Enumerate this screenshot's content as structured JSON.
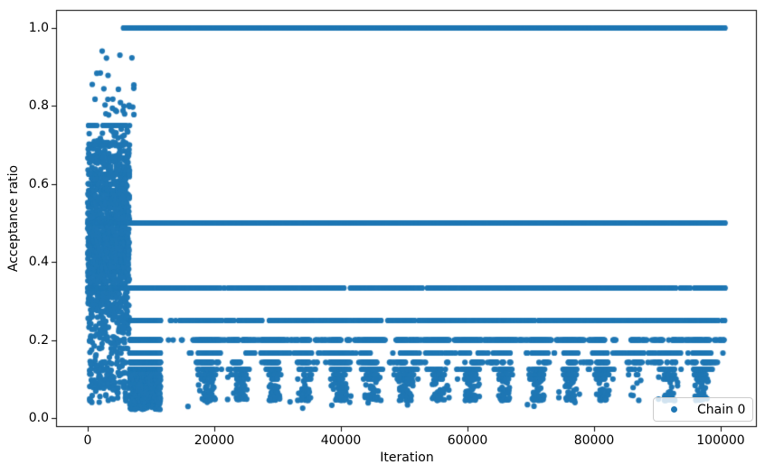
{
  "chart_data": {
    "type": "scatter",
    "title": "",
    "xlabel": "Iteration",
    "ylabel": "Acceptance ratio",
    "xlim": [
      -5000,
      105714
    ],
    "ylim": [
      -0.0231,
      1.0463
    ],
    "xticks": [
      0,
      20000,
      40000,
      60000,
      80000,
      100000
    ],
    "xtick_labels": [
      "0",
      "20000",
      "40000",
      "60000",
      "80000",
      "100000"
    ],
    "yticks": [
      0.0,
      0.2,
      0.4,
      0.6,
      0.8,
      1.0
    ],
    "ytick_labels": [
      "0.0",
      "0.2",
      "0.4",
      "0.6",
      "0.8",
      "1.0"
    ],
    "grid": false,
    "legend": {
      "label": "Chain 0",
      "location": "lower right"
    },
    "marker": {
      "shape": "circle",
      "color": "#1f77b4",
      "radius_px": 3.1
    },
    "series": [
      {
        "name": "Chain 0"
      }
    ],
    "pattern": {
      "seed": 11,
      "x_end": 100700,
      "acceptance_band_levels": [
        1.0,
        0.5,
        0.3333,
        0.25,
        0.2,
        0.1667,
        0.1429,
        0.125,
        0.1111,
        0.1
      ],
      "band_one_start": 5650,
      "band_half_start": 0,
      "band_third_start": 0,
      "burn_in": {
        "x_start": 0,
        "x_end": 6600,
        "y_min": 0.13,
        "y_top_base": 0.755,
        "y_top_rise_from": 4600,
        "y_top_rise": 0.075,
        "striation_fractions": [
          0.5,
          0.6,
          0.625,
          0.6667,
          0.7,
          0.75,
          0.4,
          0.3333,
          0.375,
          0.45,
          0.55,
          0.5833
        ],
        "high_outlier_count": 28,
        "high_outlier_ymin": 0.775,
        "high_outlier_ymax": 0.945,
        "clump_count": 90,
        "clump_ymin": 0.075,
        "clump_ymax": 0.145,
        "low_tail_count": 30,
        "low_tail_ymin": 0.04,
        "low_tail_ymax": 0.09
      },
      "low_pillar": {
        "x_start": 6650,
        "x_end": 11500,
        "cloud_ymin": 0.03,
        "cloud_ymax": 0.115,
        "band_fractions": [
          4,
          5,
          6,
          7,
          8
        ],
        "band_duty": 0.93,
        "floor_y": 0.022
      },
      "quiet_zone": {
        "x_start": 11500,
        "x_end": 14400
      },
      "dip_cycle_centers": [
        19000,
        24200,
        29400,
        34600,
        39800,
        45000,
        50200,
        55400,
        60600,
        65800,
        71000,
        76200,
        81400,
        86600,
        91800,
        97000
      ],
      "dip_intensities": [
        1,
        1,
        0.95,
        0.8,
        1,
        0.95,
        1,
        0.9,
        1,
        0.95,
        1,
        0.9,
        1,
        0.5,
        0.85,
        1
      ],
      "dip_sigma": 1100,
      "deep_cloud_ymin": 0.045,
      "deep_cloud_ymax": 0.118,
      "y_floor": 0.025
    }
  }
}
